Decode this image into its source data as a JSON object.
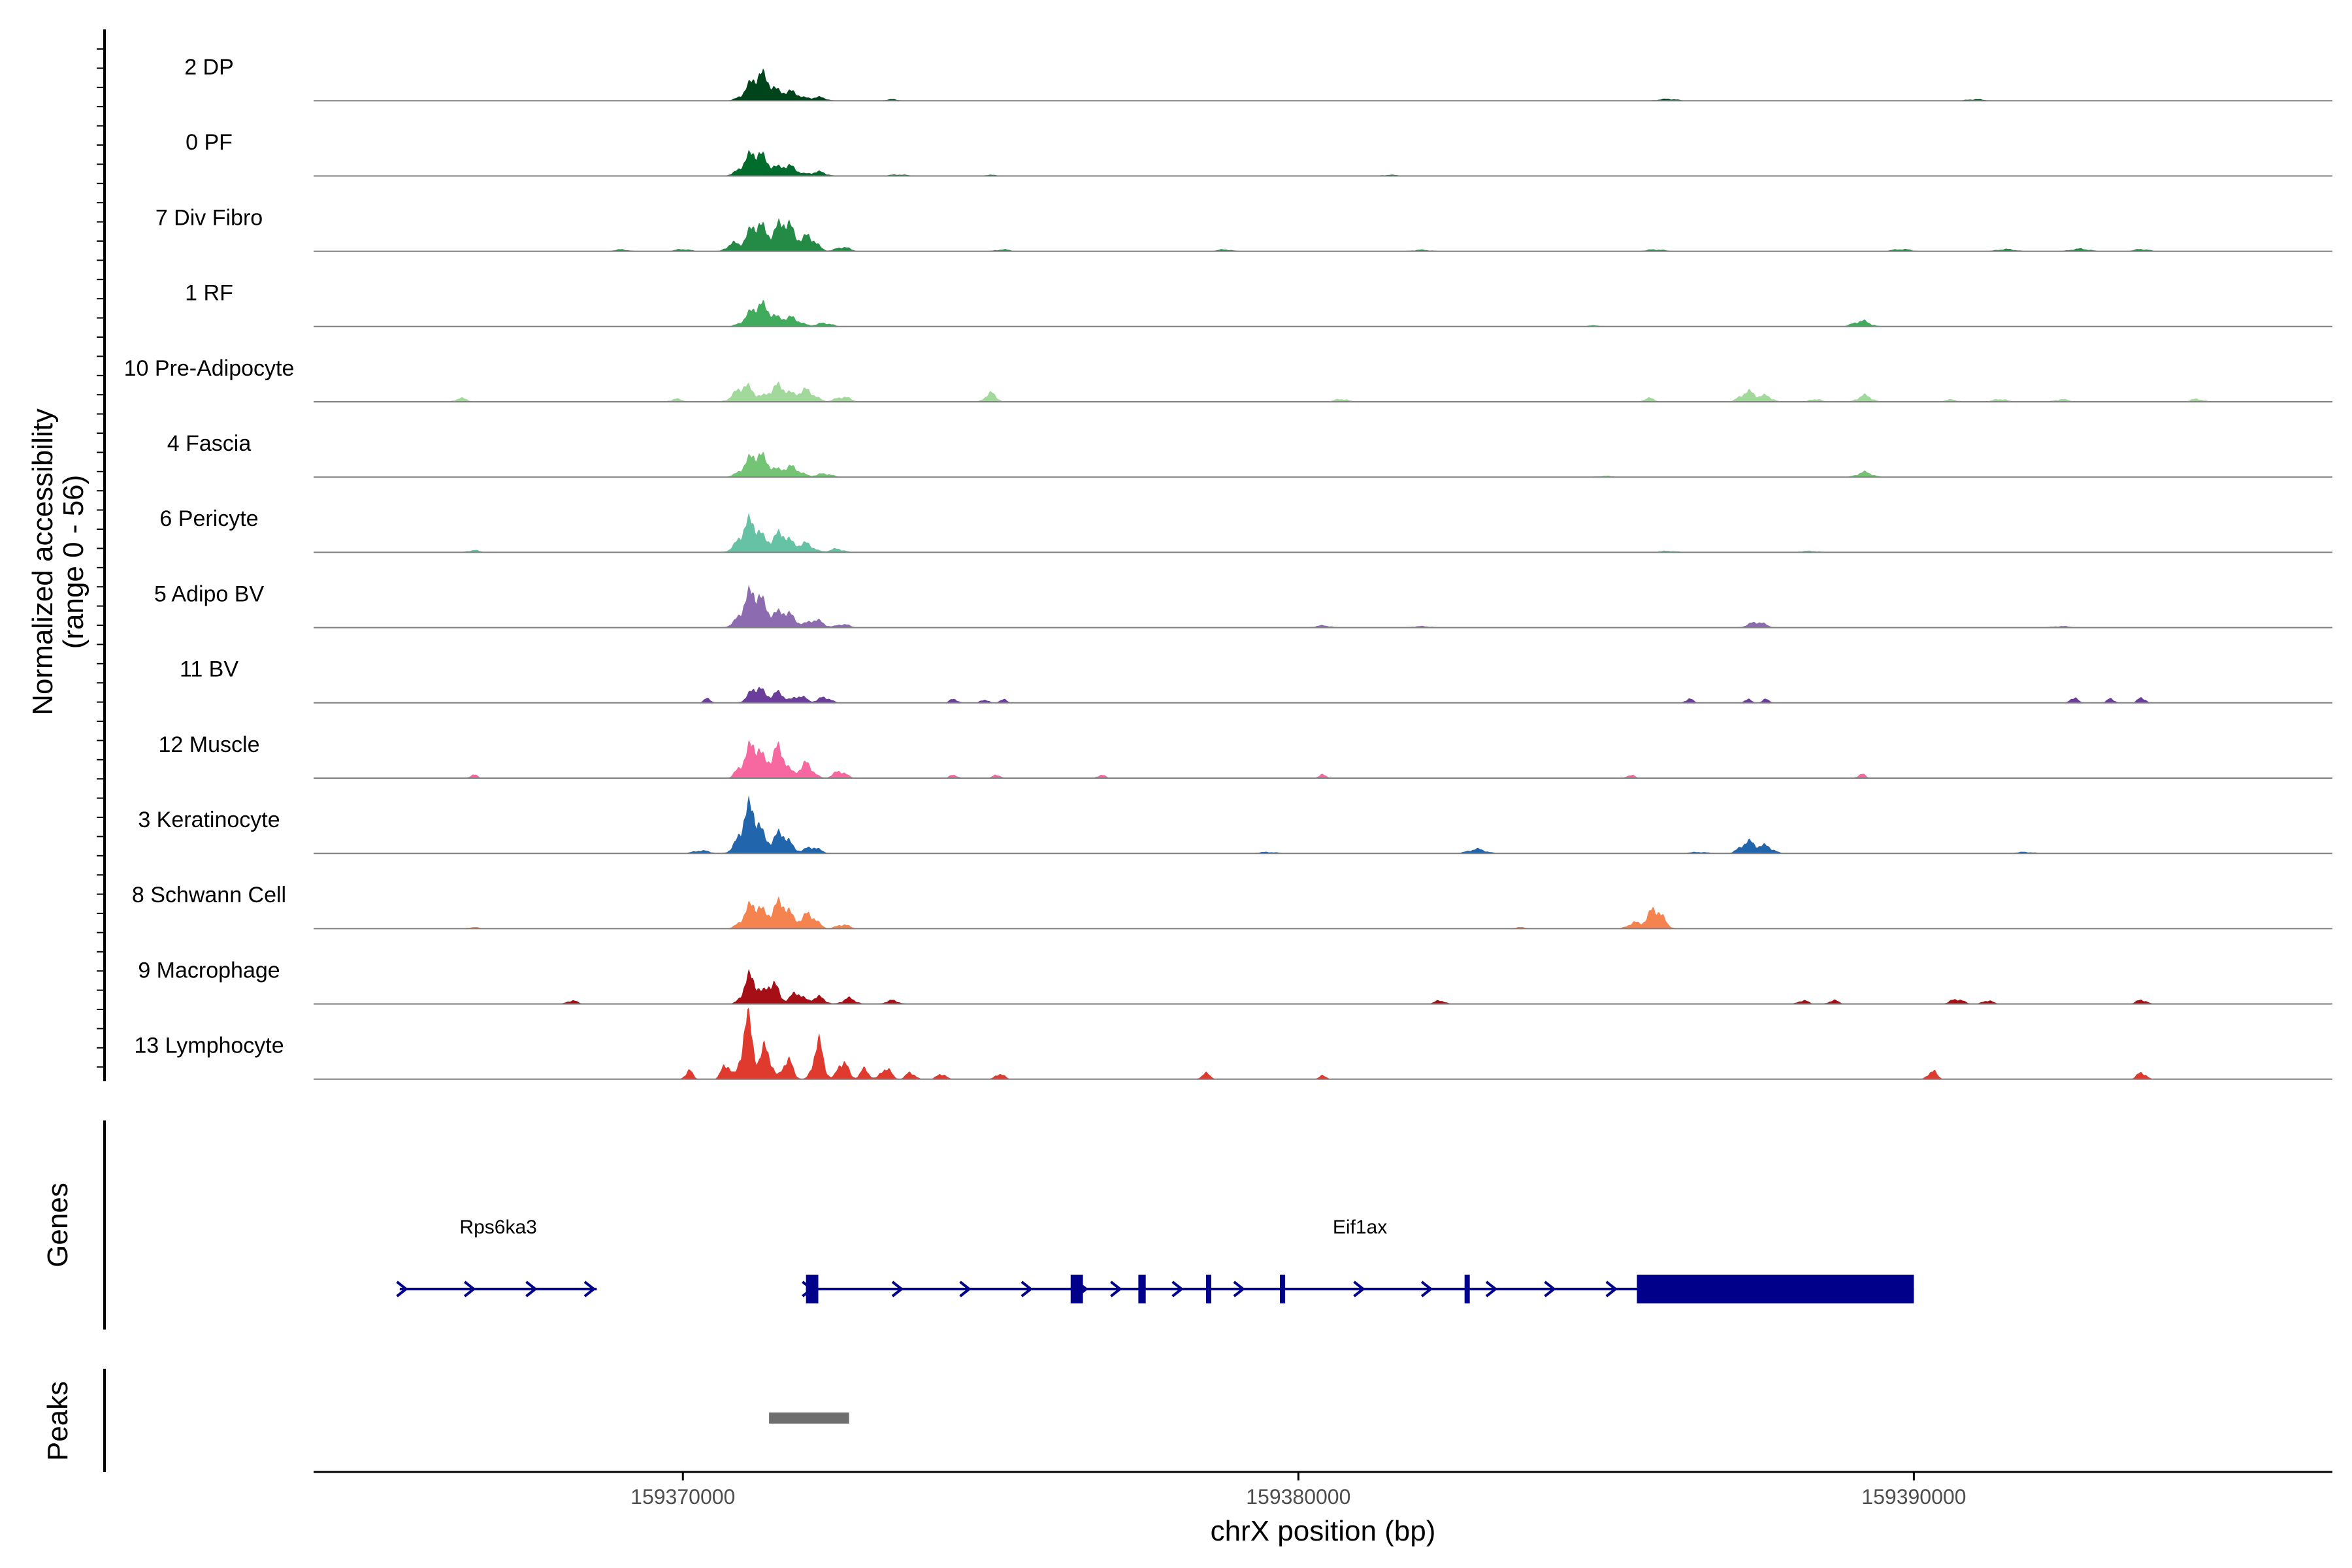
{
  "chart_data": {
    "type": "area",
    "title": "",
    "ylabel": [
      "Normalized accessibility",
      "(range 0 - 56)"
    ],
    "xlabel": "chrX position (bp)",
    "xlim": [
      159364000,
      159396800
    ],
    "ylim": [
      0,
      56
    ],
    "x_ticks": [
      159370000,
      159380000,
      159390000
    ],
    "x_tick_labels": [
      "159370000",
      "159380000",
      "159390000"
    ],
    "tracks": [
      {
        "name": "2 DP",
        "color": "#00441b",
        "peaks": [
          [
            159371250,
            0.36,
            180
          ],
          [
            159371750,
            0.12,
            150
          ],
          [
            159372200,
            0.05,
            120
          ],
          [
            159373400,
            0.02,
            100
          ],
          [
            159386000,
            0.025,
            150
          ],
          [
            159391000,
            0.02,
            150
          ]
        ]
      },
      {
        "name": "0 PF",
        "color": "#006d2c",
        "peaks": [
          [
            159371180,
            0.33,
            180
          ],
          [
            159371700,
            0.14,
            150
          ],
          [
            159372200,
            0.06,
            120
          ],
          [
            159373500,
            0.02,
            150
          ],
          [
            159375000,
            0.015,
            120
          ],
          [
            159381500,
            0.015,
            150
          ]
        ]
      },
      {
        "name": "7 Div Fibro",
        "color": "#238b45",
        "peaks": [
          [
            159370800,
            0.1,
            90
          ],
          [
            159371200,
            0.38,
            150
          ],
          [
            159371650,
            0.42,
            140
          ],
          [
            159372050,
            0.2,
            120
          ],
          [
            159372600,
            0.06,
            110
          ],
          [
            159370000,
            0.03,
            120
          ],
          [
            159369000,
            0.025,
            120
          ],
          [
            159375200,
            0.025,
            120
          ],
          [
            159378800,
            0.025,
            120
          ],
          [
            159382000,
            0.02,
            150
          ],
          [
            159385800,
            0.025,
            150
          ],
          [
            159389800,
            0.03,
            150
          ],
          [
            159391500,
            0.03,
            150
          ],
          [
            159392700,
            0.035,
            150
          ],
          [
            159393700,
            0.03,
            120
          ]
        ]
      },
      {
        "name": "1 RF",
        "color": "#41ab5d",
        "peaks": [
          [
            159371250,
            0.3,
            180
          ],
          [
            159371750,
            0.12,
            150
          ],
          [
            159372300,
            0.05,
            120
          ],
          [
            159389150,
            0.08,
            130
          ],
          [
            159384800,
            0.015,
            150
          ]
        ]
      },
      {
        "name": "10 Pre-Adipocyte",
        "color": "#a1d99b",
        "peaks": [
          [
            159371000,
            0.22,
            150
          ],
          [
            159371550,
            0.22,
            150
          ],
          [
            159372000,
            0.16,
            140
          ],
          [
            159372600,
            0.07,
            120
          ],
          [
            159375000,
            0.12,
            90
          ],
          [
            159366400,
            0.05,
            100
          ],
          [
            159369900,
            0.04,
            100
          ],
          [
            159387300,
            0.14,
            120
          ],
          [
            159387600,
            0.08,
            100
          ],
          [
            159389200,
            0.09,
            110
          ],
          [
            159385700,
            0.05,
            90
          ],
          [
            159388400,
            0.04,
            90
          ],
          [
            159390600,
            0.03,
            120
          ],
          [
            159391400,
            0.04,
            110
          ],
          [
            159392400,
            0.035,
            120
          ],
          [
            159394600,
            0.04,
            110
          ],
          [
            159380700,
            0.04,
            110
          ]
        ]
      },
      {
        "name": "4 Fascia",
        "color": "#74c476",
        "peaks": [
          [
            159371200,
            0.32,
            180
          ],
          [
            159371750,
            0.14,
            150
          ],
          [
            159372300,
            0.05,
            120
          ],
          [
            159389200,
            0.07,
            120
          ],
          [
            159385000,
            0.015,
            150
          ]
        ]
      },
      {
        "name": "6 Pericyte",
        "color": "#66c2a4",
        "peaks": [
          [
            159371100,
            0.42,
            160
          ],
          [
            159371600,
            0.26,
            140
          ],
          [
            159372000,
            0.12,
            120
          ],
          [
            159372500,
            0.05,
            110
          ],
          [
            159366600,
            0.03,
            100
          ],
          [
            159386000,
            0.02,
            150
          ],
          [
            159388300,
            0.02,
            150
          ]
        ]
      },
      {
        "name": "5 Adipo BV",
        "color": "#8c6bb1",
        "peaks": [
          [
            159371150,
            0.5,
            170
          ],
          [
            159371650,
            0.22,
            150
          ],
          [
            159372150,
            0.11,
            120
          ],
          [
            159372600,
            0.05,
            100
          ],
          [
            159387450,
            0.08,
            130
          ],
          [
            159380400,
            0.03,
            120
          ],
          [
            159382000,
            0.02,
            150
          ],
          [
            159392400,
            0.02,
            150
          ]
        ]
      },
      {
        "name": "11 BV",
        "color": "#6a3d9a",
        "peaks": [
          [
            159370400,
            0.06,
            60
          ],
          [
            159371200,
            0.22,
            120
          ],
          [
            159371550,
            0.14,
            100
          ],
          [
            159371900,
            0.1,
            100
          ],
          [
            159372300,
            0.08,
            100
          ],
          [
            159374400,
            0.06,
            60
          ],
          [
            159374900,
            0.05,
            60
          ],
          [
            159375200,
            0.05,
            60
          ],
          [
            159386350,
            0.06,
            60
          ],
          [
            159387300,
            0.05,
            60
          ],
          [
            159387600,
            0.05,
            60
          ],
          [
            159392600,
            0.08,
            60
          ],
          [
            159393200,
            0.06,
            60
          ],
          [
            159393700,
            0.08,
            60
          ]
        ]
      },
      {
        "name": "12 Muscle",
        "color": "#f768a1",
        "peaks": [
          [
            159371150,
            0.48,
            130
          ],
          [
            159371550,
            0.4,
            120
          ],
          [
            159372000,
            0.2,
            110
          ],
          [
            159372550,
            0.1,
            100
          ],
          [
            159366600,
            0.05,
            60
          ],
          [
            159370900,
            0.07,
            70
          ],
          [
            159374400,
            0.05,
            60
          ],
          [
            159375100,
            0.05,
            60
          ],
          [
            159376800,
            0.05,
            60
          ],
          [
            159380400,
            0.05,
            60
          ],
          [
            159385400,
            0.05,
            60
          ],
          [
            159389150,
            0.06,
            60
          ]
        ]
      },
      {
        "name": "3 Keratinocyte",
        "color": "#2166ac",
        "peaks": [
          [
            159371100,
            0.62,
            150
          ],
          [
            159371600,
            0.28,
            130
          ],
          [
            159372100,
            0.09,
            120
          ],
          [
            159370300,
            0.04,
            130
          ],
          [
            159379500,
            0.02,
            150
          ],
          [
            159382900,
            0.06,
            140
          ],
          [
            159387300,
            0.16,
            120
          ],
          [
            159387600,
            0.1,
            110
          ],
          [
            159386500,
            0.02,
            150
          ],
          [
            159391800,
            0.02,
            150
          ]
        ]
      },
      {
        "name": "8 Schwann Cell",
        "color": "#f4834f",
        "peaks": [
          [
            159371150,
            0.34,
            150
          ],
          [
            159371600,
            0.36,
            140
          ],
          [
            159372050,
            0.2,
            120
          ],
          [
            159372600,
            0.06,
            100
          ],
          [
            159385800,
            0.28,
            120
          ],
          [
            159385450,
            0.08,
            100
          ],
          [
            159366600,
            0.02,
            100
          ],
          [
            159383600,
            0.02,
            100
          ]
        ]
      },
      {
        "name": "9 Macrophage",
        "color": "#a50f15",
        "peaks": [
          [
            159371100,
            0.38,
            110
          ],
          [
            159371450,
            0.3,
            100
          ],
          [
            159371850,
            0.16,
            100
          ],
          [
            159372200,
            0.1,
            100
          ],
          [
            159372700,
            0.08,
            100
          ],
          [
            159373400,
            0.05,
            100
          ],
          [
            159368200,
            0.05,
            80
          ],
          [
            159382300,
            0.05,
            80
          ],
          [
            159388200,
            0.05,
            80
          ],
          [
            159388700,
            0.05,
            80
          ],
          [
            159390700,
            0.07,
            100
          ],
          [
            159391200,
            0.05,
            80
          ],
          [
            159393700,
            0.06,
            80
          ]
        ]
      },
      {
        "name": "13 Lymphocyte",
        "color": "#e03a2f",
        "peaks": [
          [
            159371050,
            0.82,
            90
          ],
          [
            159371350,
            0.45,
            80
          ],
          [
            159370700,
            0.22,
            70
          ],
          [
            159371700,
            0.28,
            80
          ],
          [
            159372200,
            0.5,
            80
          ],
          [
            159372600,
            0.26,
            80
          ],
          [
            159372950,
            0.14,
            70
          ],
          [
            159373300,
            0.16,
            80
          ],
          [
            159370100,
            0.12,
            60
          ],
          [
            159373700,
            0.1,
            70
          ],
          [
            159374200,
            0.08,
            70
          ],
          [
            159375150,
            0.08,
            70
          ],
          [
            159378500,
            0.08,
            70
          ],
          [
            159380400,
            0.05,
            60
          ],
          [
            159390300,
            0.12,
            70
          ],
          [
            159393700,
            0.1,
            70
          ]
        ]
      }
    ],
    "genes": [
      {
        "name": "Rps6ka3",
        "start": 159365400,
        "end": 159368600,
        "label_x": 159367000,
        "exons": [],
        "arrows": [
          159365450,
          159366550,
          159367550,
          159368500
        ]
      },
      {
        "name": "Eif1ax",
        "start": 159372000,
        "end": 159390000,
        "label_x": 159381000,
        "exons": [
          [
            159372000,
            159372200
          ],
          [
            159376300,
            159376500
          ],
          [
            159377400,
            159377520
          ],
          [
            159378500,
            159378560
          ],
          [
            159379700,
            159379760
          ],
          [
            159382700,
            159382780
          ],
          [
            159385500,
            159390000
          ]
        ],
        "arrows": [
          159372040,
          159373500,
          159374600,
          159375600,
          159376500,
          159377050,
          159378050,
          159379050,
          159381000,
          159382100,
          159383150,
          159384100,
          159385100
        ]
      }
    ],
    "gene_color": "#00008b",
    "gene_panel_label": "Genes",
    "peaks_panel_label": "Peaks",
    "peak_regions": [
      [
        159371400,
        159372700
      ]
    ],
    "peak_color": "#6e6e6e"
  }
}
